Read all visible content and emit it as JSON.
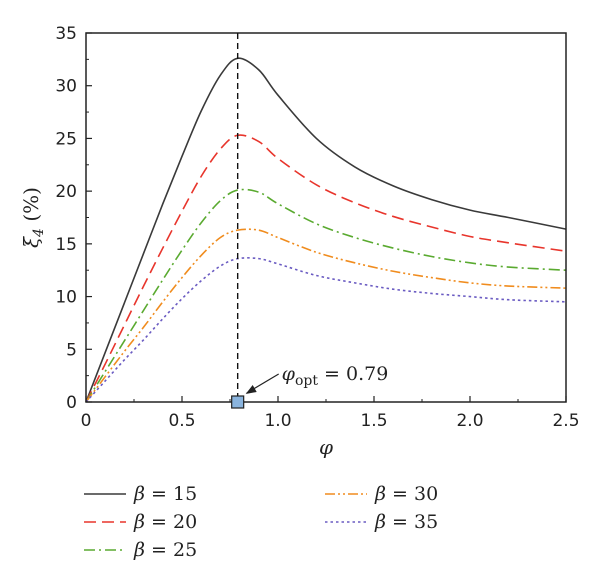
{
  "chart_data": {
    "type": "line",
    "xlabel": "φ",
    "ylabel": "ξ4 (%)",
    "xlim": [
      0,
      2.5
    ],
    "ylim": [
      0,
      35
    ],
    "x_ticks": [
      "0",
      "0.5",
      "1.0",
      "1.5",
      "2.0",
      "2.5"
    ],
    "y_ticks": [
      "0",
      "5",
      "10",
      "15",
      "20",
      "25",
      "30",
      "35"
    ],
    "grid": false,
    "legend_position": "bottom",
    "x": [
      0,
      0.1,
      0.2,
      0.3,
      0.4,
      0.5,
      0.6,
      0.7,
      0.79,
      0.9,
      1.0,
      1.2,
      1.4,
      1.6,
      1.8,
      2.0,
      2.2,
      2.5
    ],
    "series": [
      {
        "name": "β = 15",
        "color": "#3a3a3a",
        "dash": "solid",
        "values": [
          0,
          4.7,
          9.4,
          14.1,
          18.8,
          23.3,
          27.6,
          31.0,
          32.6,
          31.5,
          29.1,
          25.0,
          22.3,
          20.5,
          19.2,
          18.2,
          17.5,
          16.4
        ]
      },
      {
        "name": "β = 20",
        "color": "#e8352c",
        "dash": "long-dash",
        "values": [
          0,
          3.6,
          7.3,
          11.0,
          14.6,
          18.1,
          21.4,
          24.0,
          25.3,
          24.7,
          23.1,
          20.6,
          18.9,
          17.6,
          16.6,
          15.7,
          15.1,
          14.3
        ]
      },
      {
        "name": "β = 25",
        "color": "#5aaa30",
        "dash": "dash-dot",
        "values": [
          0,
          2.9,
          5.8,
          8.7,
          11.6,
          14.4,
          17.0,
          19.1,
          20.1,
          19.9,
          18.8,
          16.9,
          15.6,
          14.6,
          13.8,
          13.2,
          12.8,
          12.5
        ]
      },
      {
        "name": "β = 30",
        "color": "#f08c1e",
        "dash": "dash-dot-dot",
        "values": [
          0,
          2.4,
          4.8,
          7.1,
          9.5,
          11.8,
          13.9,
          15.6,
          16.3,
          16.3,
          15.6,
          14.2,
          13.2,
          12.4,
          11.8,
          11.3,
          11.0,
          10.8
        ]
      },
      {
        "name": "β = 35",
        "color": "#6a5bc2",
        "dash": "dotted",
        "values": [
          0,
          2.0,
          4.0,
          5.9,
          7.9,
          9.8,
          11.5,
          12.9,
          13.6,
          13.6,
          13.1,
          12.0,
          11.3,
          10.7,
          10.3,
          10.0,
          9.7,
          9.5
        ]
      }
    ],
    "annotations": {
      "optimum_x": 0.79,
      "optimum_prefix": "φ",
      "optimum_subscript": "opt",
      "optimum_text": " = 0.79"
    }
  }
}
